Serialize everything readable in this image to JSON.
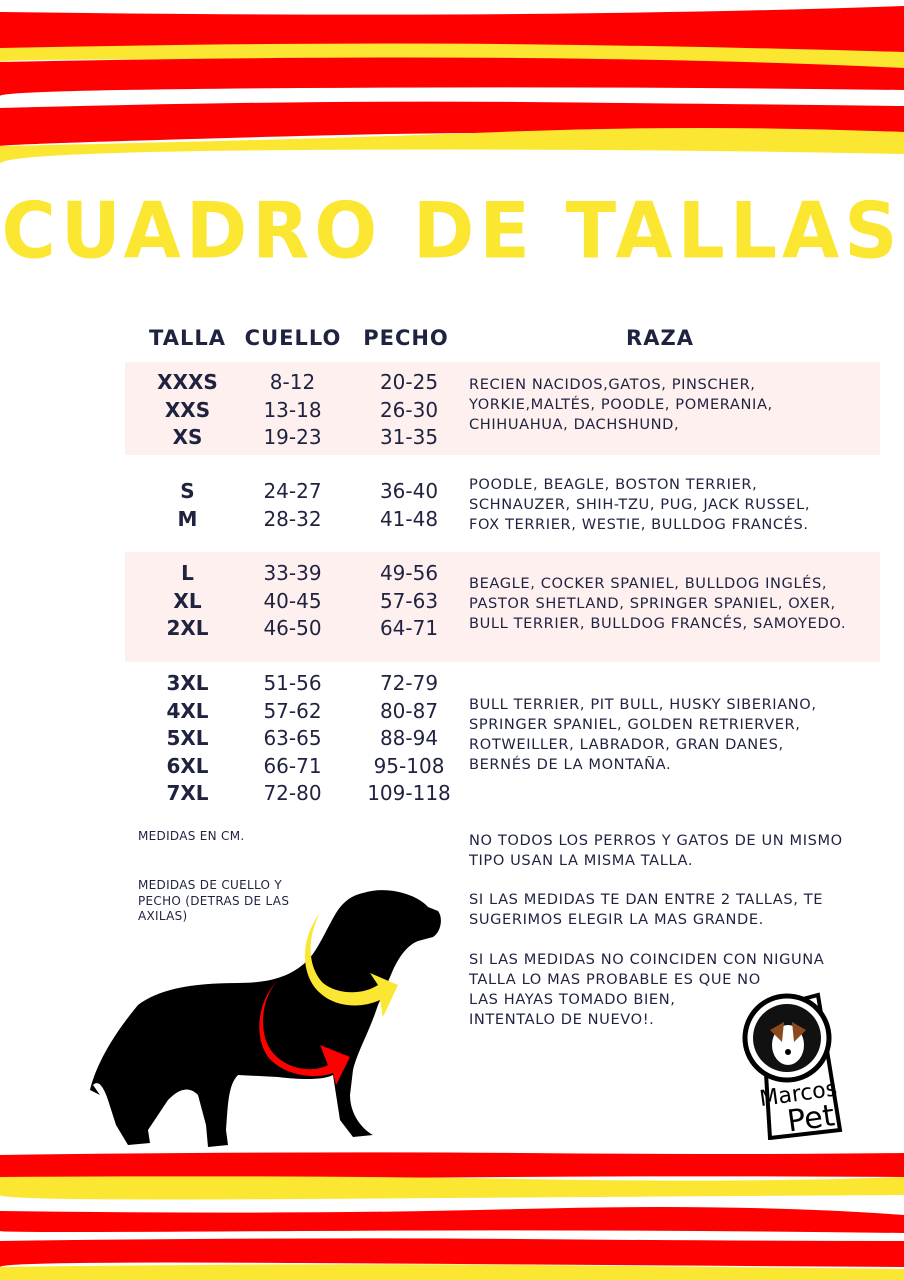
{
  "title": "CUADRO DE TALLAS",
  "colors": {
    "red": "#ff0000",
    "yellow": "#fbe731",
    "text": "#1f2340",
    "band": "#fdf0ef"
  },
  "headers": {
    "talla": "TALLA",
    "cuello": "CUELLO",
    "pecho": "PECHO",
    "raza": "RAZA"
  },
  "groups": [
    {
      "sizes": [
        "XXXS",
        "XXS",
        "XS"
      ],
      "cuello": [
        "8-12",
        "13-18",
        "19-23"
      ],
      "pecho": [
        "20-25",
        "26-30",
        "31-35"
      ],
      "raza": [
        "RECIEN NACIDOS,GATOS, PINSCHER,",
        "YORKIE,MALTÉS, POODLE, POMERANIA,",
        "CHIHUAHUA, DACHSHUND,"
      ]
    },
    {
      "sizes": [
        "S",
        "M"
      ],
      "cuello": [
        "24-27",
        "28-32"
      ],
      "pecho": [
        "36-40",
        "41-48"
      ],
      "raza": [
        "POODLE, BEAGLE, BOSTON TERRIER,",
        "SCHNAUZER, SHIH-TZU, PUG, JACK RUSSEL,",
        "FOX TERRIER, WESTIE, BULLDOG FRANCÉS."
      ]
    },
    {
      "sizes": [
        "L",
        "XL",
        "2XL"
      ],
      "cuello": [
        "33-39",
        "40-45",
        "46-50"
      ],
      "pecho": [
        "49-56",
        "57-63",
        "64-71"
      ],
      "raza": [
        "BEAGLE, COCKER SPANIEL, BULLDOG INGLÉS,",
        "PASTOR SHETLAND, SPRINGER SPANIEL, OXER,",
        "BULL TERRIER, BULLDOG FRANCÉS, SAMOYEDO."
      ]
    },
    {
      "sizes": [
        "3XL",
        "4XL",
        "5XL",
        "6XL",
        "7XL"
      ],
      "cuello": [
        "51-56",
        "57-62",
        "63-65",
        "66-71",
        "72-80"
      ],
      "pecho": [
        "72-79",
        "80-87",
        "88-94",
        "95-108",
        "109-118"
      ],
      "raza": [
        "BULL TERRIER, PIT BULL, HUSKY SIBERIANO,",
        "SPRINGER SPANIEL, GOLDEN RETRIERVER,",
        "ROTWEILLER, LABRADOR, GRAN DANES,",
        "BERNÉS DE LA MONTAÑA."
      ]
    }
  ],
  "notes": {
    "units": "MEDIDAS EN CM.",
    "measure": [
      "MEDIDAS DE CUELLO Y",
      "PECHO (DETRAS DE LAS",
      "AXILAS)"
    ]
  },
  "tips": [
    [
      "NO TODOS LOS PERROS Y GATOS DE UN MISMO",
      "TIPO USAN LA MISMA TALLA."
    ],
    [
      "SI LAS MEDIDAS TE DAN ENTRE 2 TALLAS, TE",
      "SUGERIMOS ELEGIR LA MAS GRANDE."
    ],
    [
      "SI LAS MEDIDAS NO COINCIDEN CON NIGUNA",
      "TALLA LO MAS PROBABLE ES QUE NO",
      "LAS HAYAS TOMADO BIEN,",
      "INTENTALO DE NUEVO!."
    ]
  ],
  "logo": {
    "line1": "Marcos",
    "line2": "Pet"
  }
}
